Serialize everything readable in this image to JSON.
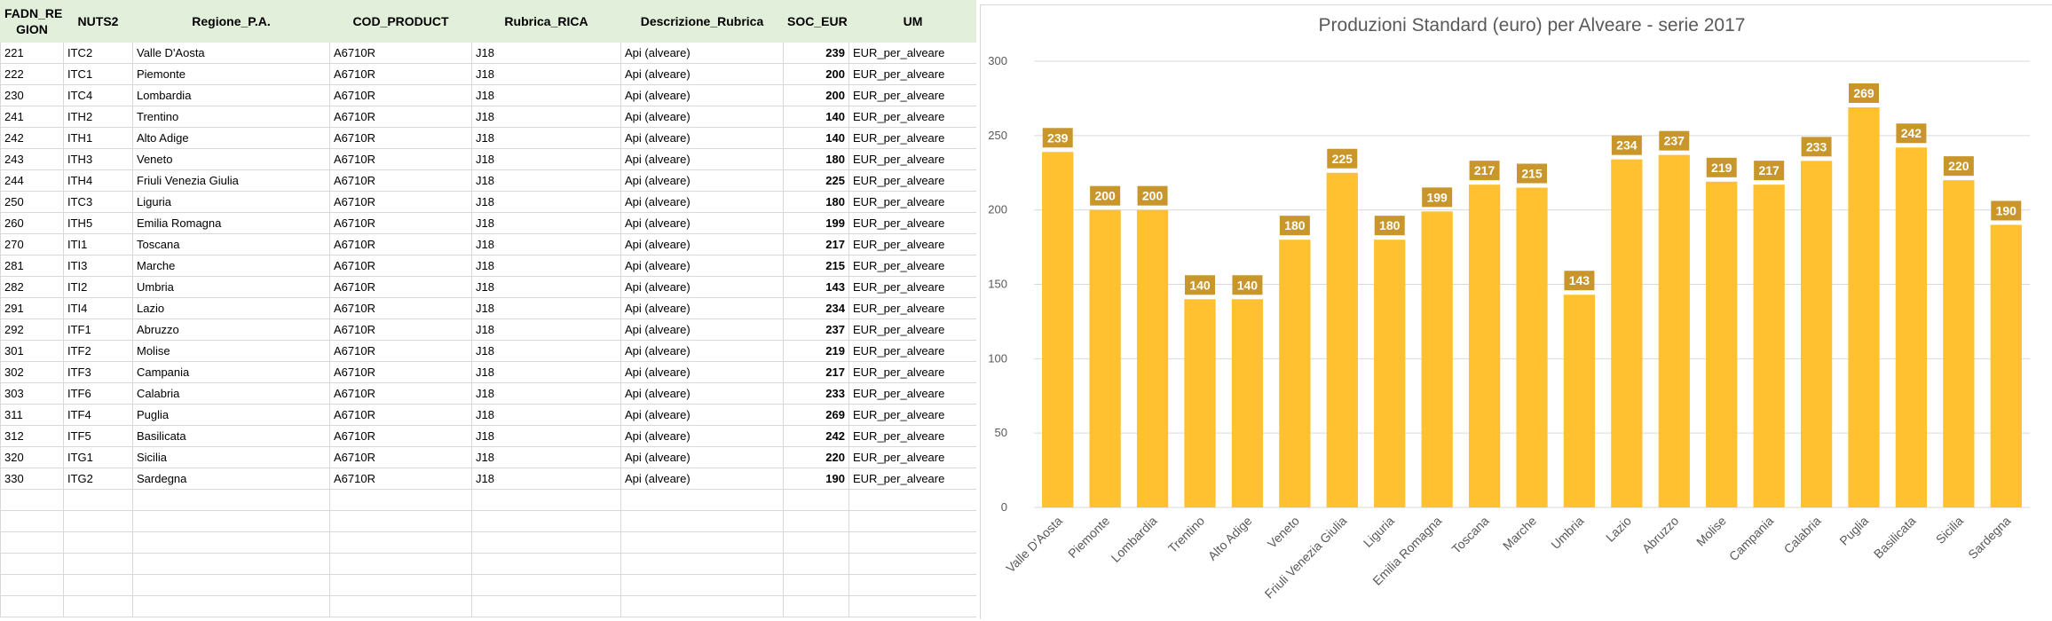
{
  "sheet": {
    "columns": [
      "FADN_RE GION",
      "NUTS2",
      "Regione_P.A.",
      "COD_PRODUCT",
      "Rubrica_RICA",
      "Descrizione_Rubrica",
      "SOC_EUR",
      "UM"
    ],
    "rows": [
      [
        "221",
        "ITC2",
        "Valle D'Aosta",
        "A6710R",
        "J18",
        "Api (alveare)",
        "239",
        "EUR_per_alveare"
      ],
      [
        "222",
        "ITC1",
        "Piemonte",
        "A6710R",
        "J18",
        "Api (alveare)",
        "200",
        "EUR_per_alveare"
      ],
      [
        "230",
        "ITC4",
        "Lombardia",
        "A6710R",
        "J18",
        "Api (alveare)",
        "200",
        "EUR_per_alveare"
      ],
      [
        "241",
        "ITH2",
        "Trentino",
        "A6710R",
        "J18",
        "Api (alveare)",
        "140",
        "EUR_per_alveare"
      ],
      [
        "242",
        "ITH1",
        "Alto Adige",
        "A6710R",
        "J18",
        "Api (alveare)",
        "140",
        "EUR_per_alveare"
      ],
      [
        "243",
        "ITH3",
        "Veneto",
        "A6710R",
        "J18",
        "Api (alveare)",
        "180",
        "EUR_per_alveare"
      ],
      [
        "244",
        "ITH4",
        "Friuli Venezia Giulia",
        "A6710R",
        "J18",
        "Api (alveare)",
        "225",
        "EUR_per_alveare"
      ],
      [
        "250",
        "ITC3",
        "Liguria",
        "A6710R",
        "J18",
        "Api (alveare)",
        "180",
        "EUR_per_alveare"
      ],
      [
        "260",
        "ITH5",
        "Emilia Romagna",
        "A6710R",
        "J18",
        "Api (alveare)",
        "199",
        "EUR_per_alveare"
      ],
      [
        "270",
        "ITI1",
        "Toscana",
        "A6710R",
        "J18",
        "Api (alveare)",
        "217",
        "EUR_per_alveare"
      ],
      [
        "281",
        "ITI3",
        "Marche",
        "A6710R",
        "J18",
        "Api (alveare)",
        "215",
        "EUR_per_alveare"
      ],
      [
        "282",
        "ITI2",
        "Umbria",
        "A6710R",
        "J18",
        "Api (alveare)",
        "143",
        "EUR_per_alveare"
      ],
      [
        "291",
        "ITI4",
        "Lazio",
        "A6710R",
        "J18",
        "Api (alveare)",
        "234",
        "EUR_per_alveare"
      ],
      [
        "292",
        "ITF1",
        "Abruzzo",
        "A6710R",
        "J18",
        "Api (alveare)",
        "237",
        "EUR_per_alveare"
      ],
      [
        "301",
        "ITF2",
        "Molise",
        "A6710R",
        "J18",
        "Api (alveare)",
        "219",
        "EUR_per_alveare"
      ],
      [
        "302",
        "ITF3",
        "Campania",
        "A6710R",
        "J18",
        "Api (alveare)",
        "217",
        "EUR_per_alveare"
      ],
      [
        "303",
        "ITF6",
        "Calabria",
        "A6710R",
        "J18",
        "Api (alveare)",
        "233",
        "EUR_per_alveare"
      ],
      [
        "311",
        "ITF4",
        "Puglia",
        "A6710R",
        "J18",
        "Api (alveare)",
        "269",
        "EUR_per_alveare"
      ],
      [
        "312",
        "ITF5",
        "Basilicata",
        "A6710R",
        "J18",
        "Api (alveare)",
        "242",
        "EUR_per_alveare"
      ],
      [
        "320",
        "ITG1",
        "Sicilia",
        "A6710R",
        "J18",
        "Api (alveare)",
        "220",
        "EUR_per_alveare"
      ],
      [
        "330",
        "ITG2",
        "Sardegna",
        "A6710R",
        "J18",
        "Api (alveare)",
        "190",
        "EUR_per_alveare"
      ]
    ],
    "empty_rows": 6,
    "header_bg": "#e2efda"
  },
  "chart_data": {
    "type": "bar",
    "title": "Produzioni Standard (euro) per Alveare - serie 2017",
    "categories": [
      "Valle D'Aosta",
      "Piemonte",
      "Lombardia",
      "Trentino",
      "Alto Adige",
      "Veneto",
      "Friuli Venezia Giulia",
      "Liguria",
      "Emilia Romagna",
      "Toscana",
      "Marche",
      "Umbria",
      "Lazio",
      "Abruzzo",
      "Molise",
      "Campania",
      "Calabria",
      "Puglia",
      "Basilicata",
      "Sicilia",
      "Sardegna"
    ],
    "values": [
      239,
      200,
      200,
      140,
      140,
      180,
      225,
      180,
      199,
      217,
      215,
      143,
      234,
      237,
      219,
      217,
      233,
      269,
      242,
      220,
      190
    ],
    "ylim": [
      0,
      300
    ],
    "yticks": [
      0,
      50,
      100,
      150,
      200,
      250,
      300
    ],
    "grid": true,
    "bar_color": "#ffc12f",
    "label_color": "#c8962a"
  }
}
